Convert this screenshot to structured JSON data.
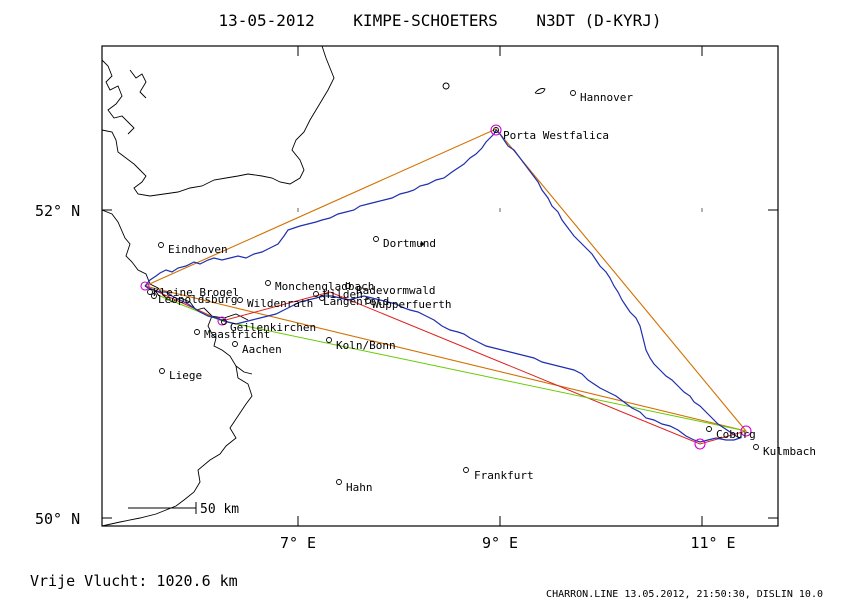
{
  "title": "13-05-2012    KIMPE-SCHOETERS    N3DT (D-KYRJ)",
  "footer_left": "Vrije Vlucht: 1020.6 km",
  "footer_right": "CHARRON.LINE 13.05.2012, 21:50:30, DISLIN 10.0",
  "scale_label": "50 km",
  "axes": {
    "lat_labels": [
      "52° N",
      "50° N"
    ],
    "lon_labels": [
      "7° E",
      "9° E",
      "11° E"
    ]
  },
  "colors": {
    "track": "#1f2fb0",
    "task": "#d37000",
    "leg_red": "#e02020",
    "leg_green": "#66cc00",
    "turnpoint": "#d000d0",
    "frame": "#000000"
  },
  "places": [
    {
      "name": "Hannover"
    },
    {
      "name": "Porta Westfalica"
    },
    {
      "name": "Dortmund"
    },
    {
      "name": "Eindhoven"
    },
    {
      "name": "Monchengladbach"
    },
    {
      "name": "Radevormwald"
    },
    {
      "name": "Hilden"
    },
    {
      "name": "Langenfeld"
    },
    {
      "name": "Wupperfuerth"
    },
    {
      "name": "Kleine Brogel"
    },
    {
      "name": "Leopoldsburg"
    },
    {
      "name": "Wildenrath"
    },
    {
      "name": "Geilenkirchen"
    },
    {
      "name": "Maastricht"
    },
    {
      "name": "Aachen"
    },
    {
      "name": "Koln/Bonn"
    },
    {
      "name": "Liege"
    },
    {
      "name": "Coburg"
    },
    {
      "name": "Kulmbach"
    },
    {
      "name": "Frankfurt"
    },
    {
      "name": "Hahn"
    }
  ]
}
